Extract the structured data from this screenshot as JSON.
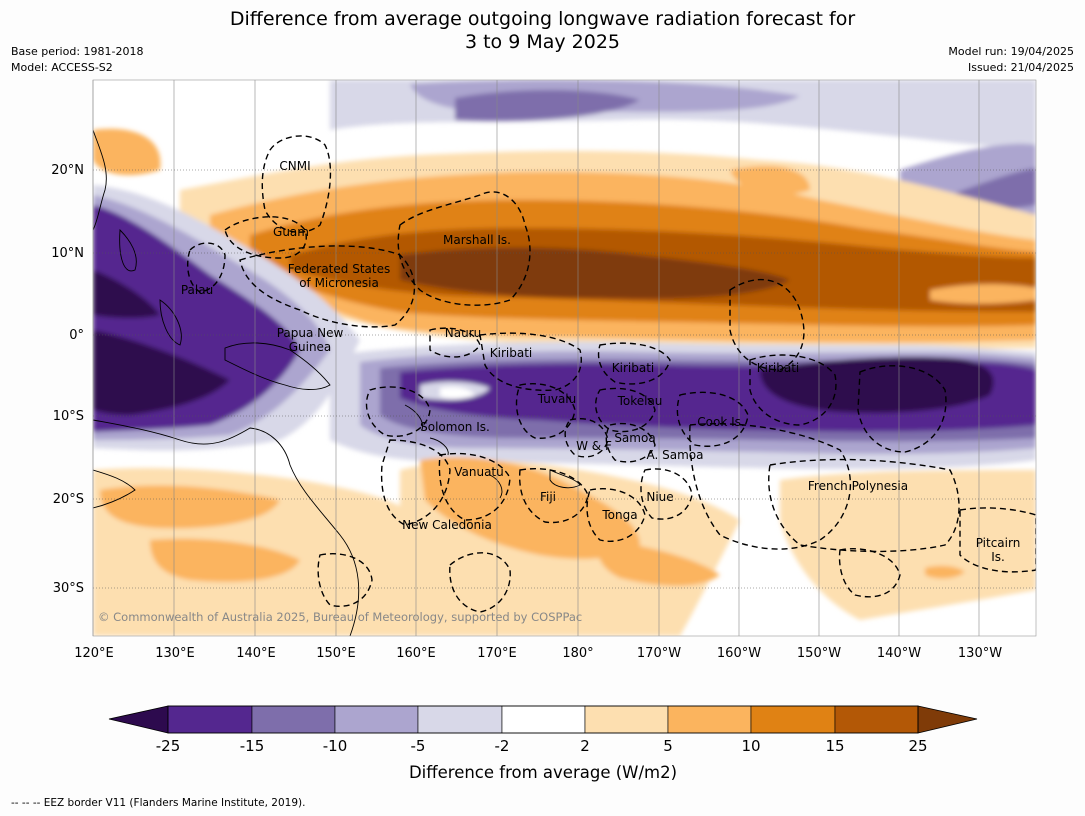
{
  "header": {
    "title_line1": "Difference from average outgoing longwave radiation forecast for",
    "title_line2": "3 to 9 May 2025",
    "base_period": "Base period: 1981-2018",
    "model": "Model: ACCESS-S2",
    "model_run": "Model run: 19/04/2025",
    "issued": "Issued: 21/04/2025"
  },
  "map": {
    "copyright": "© Commonwealth of Australia 2025, Bureau of Meteorology, supported by COSPPac",
    "lon_ticks": [
      "120°E",
      "130°E",
      "140°E",
      "150°E",
      "160°E",
      "170°E",
      "180°",
      "170°W",
      "160°W",
      "150°W",
      "140°W",
      "130°W"
    ],
    "lat_ticks": [
      "20°N",
      "10°N",
      "0°",
      "10°S",
      "20°S",
      "30°S"
    ],
    "places": {
      "cnmi": "CNMI",
      "guam": "Guam",
      "marshall": "Marshall Is.",
      "fsm1": "Federated States",
      "fsm2": "of Micronesia",
      "palau": "Palau",
      "png1": "Papua New",
      "png2": "Guinea",
      "nauru": "Nauru",
      "kiribati_w": "Kiribati",
      "kiribati_c": "Kiribati",
      "kiribati_e": "Kiribati",
      "tuvalu": "Tuvalu",
      "tokelau": "Tokelau",
      "solomon": "Solomon Is.",
      "wf": "W & F",
      "samoa": "Samoa",
      "asamoa": "A. Samoa",
      "cook": "Cook Is.",
      "vanuatu": "Vanuatu",
      "fiji": "Fiji",
      "niue": "Niue",
      "tonga": "Tonga",
      "french_polynesia": "French Polynesia",
      "new_caledonia": "New Caledonia",
      "pitcairn1": "Pitcairn",
      "pitcairn2": "Is."
    }
  },
  "colorbar": {
    "ticks": [
      "-25",
      "-15",
      "-10",
      "-5",
      "-2",
      "2",
      "5",
      "10",
      "15",
      "25"
    ],
    "colors": [
      "#2d0a4e",
      "#54278f",
      "#7e6eab",
      "#aca5cf",
      "#d8d8e8",
      "#ffffff",
      "#fddfb0",
      "#fbb45e",
      "#e08214",
      "#b35806",
      "#7f3b08"
    ],
    "label": "Difference from average (W/m2)"
  },
  "footer": {
    "eez_note": "--  --  -- EEZ border V11 (Flanders Marine Institute, 2019)."
  }
}
